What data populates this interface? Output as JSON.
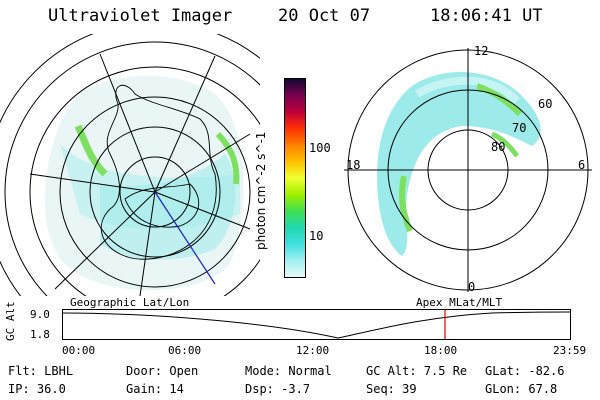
{
  "header": {
    "instrument": "Ultraviolet Imager",
    "date": "20 Oct 07",
    "time": "18:06:41 UT"
  },
  "left_map": {
    "caption": "Geographic Lat/Lon"
  },
  "right_map": {
    "caption": "Apex MLat/MLT",
    "mlt_labels": {
      "top": "12",
      "left": "18",
      "right": "6",
      "bottom": "0"
    },
    "lat_labels": [
      "60",
      "70",
      "80"
    ]
  },
  "colorbar": {
    "unit": "photon cm^-2 s^-1",
    "tick_labels": [
      "100",
      "10"
    ],
    "colors": [
      "#120830",
      "#7a0050",
      "#c0003a",
      "#ff3000",
      "#ff7f00",
      "#ffc000",
      "#f0ff30",
      "#a0f000",
      "#40e050",
      "#20d8b0",
      "#40e0e0",
      "#a0f0f0",
      "#e8f8f8"
    ]
  },
  "altitude_plot": {
    "ylabel": "GC Alt",
    "y_ticks": [
      "9.0",
      "1.8"
    ],
    "x_ticks": [
      "00:00",
      "06:00",
      "12:00",
      "18:00",
      "23:59"
    ],
    "marker_color": "#e00000"
  },
  "status": {
    "row1": {
      "flt_label": "Flt:",
      "flt_value": "LBHL",
      "door_label": "Door:",
      "door_value": "Open",
      "mode_label": "Mode:",
      "mode_value": "Normal",
      "gcalt_label": "GC Alt:",
      "gcalt_value": "7.5 Re",
      "glat_label": "GLat:",
      "glat_value": "-82.6"
    },
    "row2": {
      "ip_label": "IP:",
      "ip_value": "36.0",
      "gain_label": "Gain:",
      "gain_value": "14",
      "dsp_label": "Dsp:",
      "dsp_value": "-3.7",
      "seq_label": "Seq:",
      "seq_value": "39",
      "glon_label": "GLon:",
      "glon_value": "67.8"
    }
  }
}
